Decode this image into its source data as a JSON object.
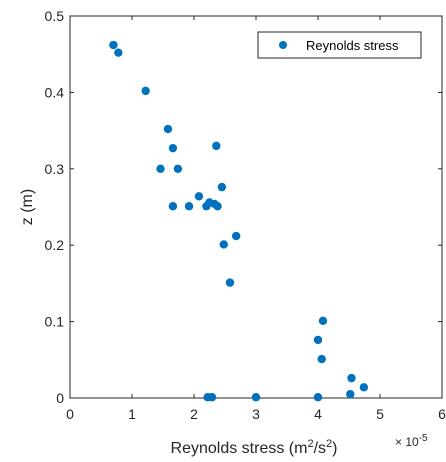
{
  "chart_data": {
    "type": "scatter",
    "title": "",
    "xlabel_prefix": "Reynolds stress (m",
    "xlabel_sup1": "2",
    "xlabel_mid": "/s",
    "xlabel_sup2": "2",
    "xlabel_suffix": ")",
    "ylabel": "z (m)",
    "x_exponent_base": "× 10",
    "x_exponent_power": "-5",
    "xlim": [
      0,
      6
    ],
    "ylim": [
      0,
      0.5
    ],
    "x_ticks": [
      0,
      1,
      2,
      3,
      4,
      5,
      6
    ],
    "x_tick_labels": [
      "0",
      "1",
      "2",
      "3",
      "4",
      "5",
      "6"
    ],
    "y_ticks": [
      0,
      0.1,
      0.2,
      0.3,
      0.4,
      0.5
    ],
    "y_tick_labels": [
      "0",
      "0.1",
      "0.2",
      "0.3",
      "0.4",
      "0.5"
    ],
    "grid": false,
    "legend_position": "top-right",
    "marker_color": "#0072BD",
    "series": [
      {
        "name": "Reynolds stress",
        "points": [
          {
            "x": 0.7,
            "y": 0.462
          },
          {
            "x": 0.78,
            "y": 0.452
          },
          {
            "x": 1.22,
            "y": 0.402
          },
          {
            "x": 1.58,
            "y": 0.352
          },
          {
            "x": 1.66,
            "y": 0.327
          },
          {
            "x": 2.36,
            "y": 0.33
          },
          {
            "x": 1.46,
            "y": 0.3
          },
          {
            "x": 1.74,
            "y": 0.3
          },
          {
            "x": 2.45,
            "y": 0.276
          },
          {
            "x": 2.08,
            "y": 0.264
          },
          {
            "x": 1.66,
            "y": 0.251
          },
          {
            "x": 1.92,
            "y": 0.251
          },
          {
            "x": 2.2,
            "y": 0.251
          },
          {
            "x": 2.25,
            "y": 0.256
          },
          {
            "x": 2.33,
            "y": 0.254
          },
          {
            "x": 2.38,
            "y": 0.251
          },
          {
            "x": 2.68,
            "y": 0.212
          },
          {
            "x": 2.48,
            "y": 0.201
          },
          {
            "x": 2.58,
            "y": 0.151
          },
          {
            "x": 4.08,
            "y": 0.101
          },
          {
            "x": 4.0,
            "y": 0.076
          },
          {
            "x": 4.06,
            "y": 0.051
          },
          {
            "x": 4.54,
            "y": 0.026
          },
          {
            "x": 4.74,
            "y": 0.014
          },
          {
            "x": 4.52,
            "y": 0.005
          },
          {
            "x": 2.22,
            "y": 0.001
          },
          {
            "x": 2.29,
            "y": 0.001
          },
          {
            "x": 3.0,
            "y": 0.001
          },
          {
            "x": 4.0,
            "y": 0.001
          }
        ]
      }
    ]
  }
}
